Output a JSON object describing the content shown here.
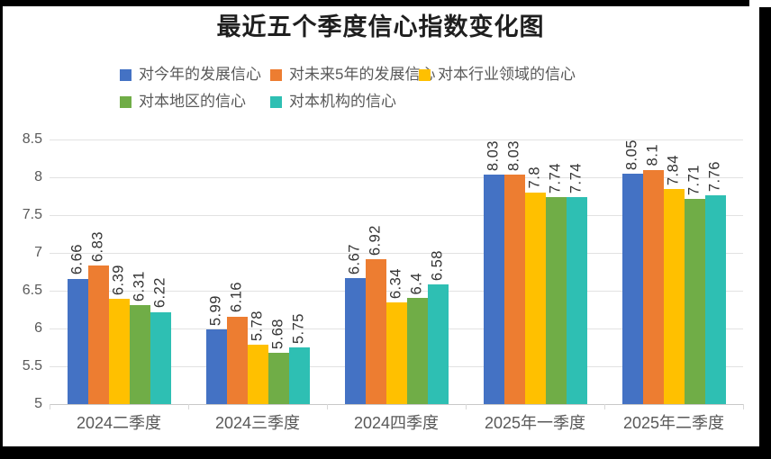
{
  "title": "最近五个季度信心指数变化图",
  "chart_data": {
    "type": "bar",
    "title": "最近五个季度信心指数变化图",
    "categories": [
      "2024二季度",
      "2024三季度",
      "2024四季度",
      "2025年一季度",
      "2025年二季度"
    ],
    "series": [
      {
        "name": "对今年的发展信心",
        "color": "#4472C4",
        "values": [
          6.66,
          5.99,
          6.67,
          8.03,
          8.05
        ]
      },
      {
        "name": "对未来5年的发展信心",
        "color": "#ED7D31",
        "values": [
          6.83,
          6.16,
          6.92,
          8.03,
          8.1
        ]
      },
      {
        "name": "对本行业领域的信心",
        "color": "#FFC000",
        "values": [
          6.39,
          5.78,
          6.34,
          7.8,
          7.84
        ]
      },
      {
        "name": "对本地区的信心",
        "color": "#70AD47",
        "values": [
          6.31,
          5.68,
          6.4,
          7.74,
          7.71
        ]
      },
      {
        "name": "对本机构的信心",
        "color": "#2EBFB3",
        "values": [
          6.22,
          5.75,
          6.58,
          7.74,
          7.76
        ]
      }
    ],
    "ylim": [
      5,
      8.5
    ],
    "ytick_labels": [
      "8.5",
      "8",
      "7.5",
      "7",
      "6.5",
      "6",
      "5.5",
      "5"
    ],
    "grid": true,
    "legend_position": "top",
    "data_label_rotation": 90,
    "colors": {
      "axis_text": "#595959",
      "data_label": "#333333",
      "gridline": "#e2e2e2",
      "title_text": "#1f1f1f",
      "frame": "#000000"
    }
  }
}
